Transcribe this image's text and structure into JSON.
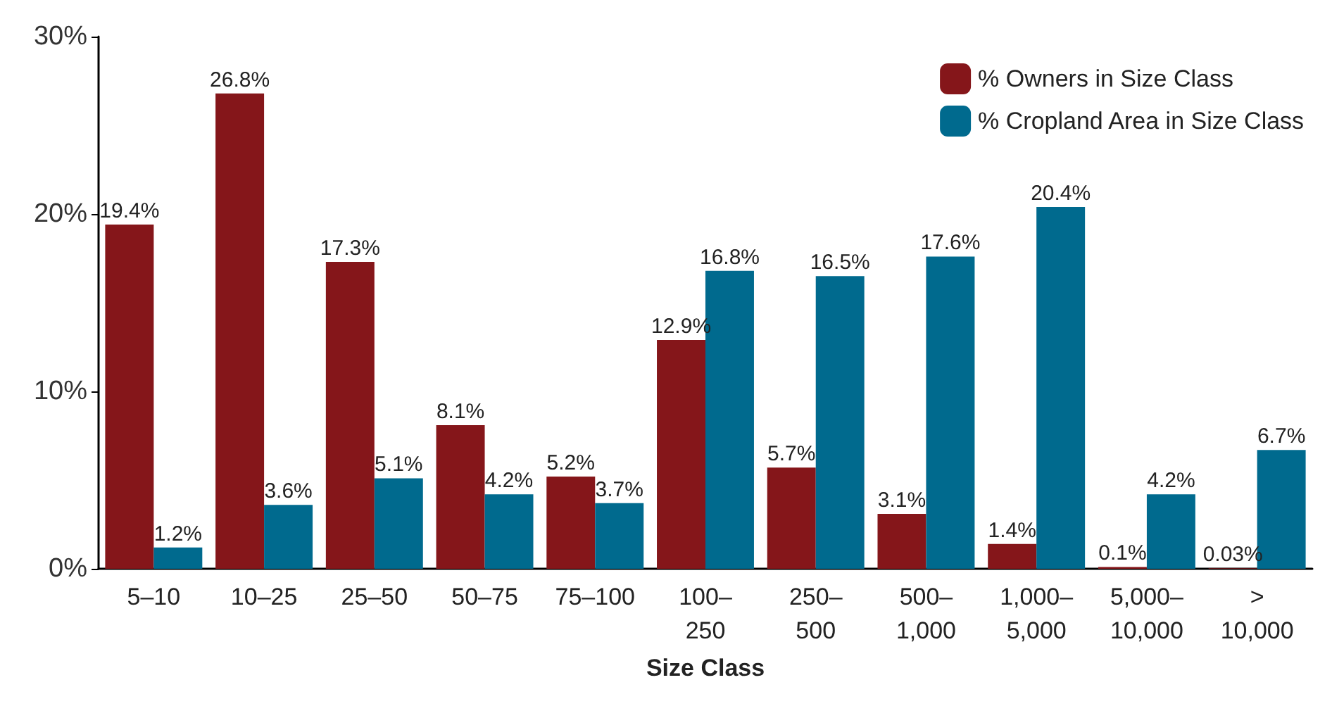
{
  "chart_data": {
    "type": "bar",
    "xlabel": "Size Class",
    "categories": [
      "5–10",
      "10–25",
      "25–50",
      "50–75",
      "75–100",
      "100–250",
      "250–500",
      "500–1,000",
      "1,000–5,000",
      "5,000–10,000",
      "> 10,000"
    ],
    "series": [
      {
        "name": "% Owners in Size Class",
        "color": "#85161a",
        "values": [
          19.4,
          26.8,
          17.3,
          8.1,
          5.2,
          12.9,
          5.7,
          3.1,
          1.4,
          0.1,
          0.03
        ],
        "value_labels": [
          "19.4%",
          "26.8%",
          "17.3%",
          "8.1%",
          "5.2%",
          "12.9%",
          "5.7%",
          "3.1%",
          "1.4%",
          "0.1%",
          "0.03%"
        ]
      },
      {
        "name": "% Cropland Area in Size Class",
        "color": "#006a8e",
        "values": [
          1.2,
          3.6,
          5.1,
          4.2,
          3.7,
          16.8,
          16.5,
          17.6,
          20.4,
          4.2,
          6.7
        ],
        "value_labels": [
          "1.2%",
          "3.6%",
          "5.1%",
          "4.2%",
          "3.7%",
          "16.8%",
          "16.5%",
          "17.6%",
          "20.4%",
          "4.2%",
          "6.7%"
        ]
      }
    ],
    "ylim": [
      0,
      30
    ],
    "yticks": [
      {
        "value": 0,
        "label": "0%"
      },
      {
        "value": 10,
        "label": "10%"
      },
      {
        "value": 20,
        "label": "20%"
      },
      {
        "value": 30,
        "label": "30%"
      }
    ],
    "grid": false,
    "legend": "top right"
  }
}
